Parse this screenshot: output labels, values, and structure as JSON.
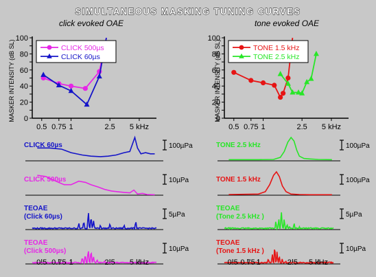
{
  "figure": {
    "title": "SIMULTANEOUS MASKING TUNING CURVES",
    "x_tick_labels": [
      "0.5",
      "0.75",
      "1",
      "2.5",
      "5 kHz"
    ],
    "colors": {
      "background": "#c8c8c8",
      "blue": "#1414c8",
      "magenta": "#e626e6",
      "red": "#e61414",
      "green": "#28e628"
    }
  },
  "chart_data": [
    {
      "id": "click-tuning",
      "type": "line",
      "subtitle": "click evoked  OAE",
      "ylabel": "MASKER INTENSITY (dB SL)",
      "x_scale": "log",
      "xlim": [
        0.4,
        7.5
      ],
      "ylim": [
        0,
        100
      ],
      "y_ticks": [
        0,
        10,
        20,
        30,
        40,
        50,
        60,
        70,
        80,
        90,
        100
      ],
      "x_ticks": [
        0.5,
        0.75,
        1,
        2.5,
        5
      ],
      "legend": "top-left",
      "series": [
        {
          "name": "CLICK 500µs",
          "color": "#e626e6",
          "marker": "circle",
          "points": [
            [
              0.52,
              50
            ],
            [
              0.75,
              43
            ],
            [
              1.0,
              40
            ],
            [
              1.4,
              37
            ],
            [
              1.95,
              58
            ],
            [
              2.3,
              100
            ]
          ]
        },
        {
          "name": "CLICK 60µs",
          "color": "#1414c8",
          "marker": "triangle",
          "points": [
            [
              0.52,
              54
            ],
            [
              0.75,
              41
            ],
            [
              1.0,
              34
            ],
            [
              1.45,
              17
            ],
            [
              1.95,
              52
            ],
            [
              2.3,
              100
            ]
          ]
        }
      ]
    },
    {
      "id": "tone-tuning",
      "type": "line",
      "subtitle": "tone evoked  OAE",
      "ylabel": "MASKER INTENSITY (dB SL)",
      "x_scale": "log",
      "xlim": [
        0.4,
        7.5
      ],
      "ylim": [
        0,
        100
      ],
      "y_ticks": [
        0,
        10,
        20,
        30,
        40,
        50,
        60,
        70,
        80,
        90,
        100
      ],
      "x_ticks": [
        0.5,
        0.75,
        1,
        2.5,
        5
      ],
      "legend": "top-left",
      "series": [
        {
          "name": "TONE 1.5 kHz",
          "color": "#e61414",
          "marker": "circle",
          "points": [
            [
              0.5,
              57
            ],
            [
              0.75,
              47
            ],
            [
              1.0,
              44
            ],
            [
              1.3,
              41
            ],
            [
              1.5,
              26
            ],
            [
              1.6,
              31
            ],
            [
              1.8,
              50
            ],
            [
              2.0,
              100
            ]
          ]
        },
        {
          "name": "TONE 2.5 kHz",
          "color": "#28e628",
          "marker": "triangle",
          "points": [
            [
              1.5,
              55
            ],
            [
              1.8,
              43
            ],
            [
              2.0,
              32
            ],
            [
              2.3,
              32
            ],
            [
              2.5,
              31
            ],
            [
              2.8,
              45
            ],
            [
              3.1,
              49
            ],
            [
              3.5,
              80
            ]
          ]
        }
      ]
    },
    {
      "id": "click-waveforms",
      "type": "line",
      "x_scale": "log",
      "xlim": [
        0.4,
        7.5
      ],
      "x_ticks": [
        0.5,
        0.75,
        1,
        2.5,
        5
      ],
      "series": [
        {
          "name": "CLICK 60µs",
          "color": "#1414c8",
          "scale_label": "100µPa",
          "kind": "spectrum",
          "x": [
            0.45,
            0.6,
            0.8,
            1.0,
            1.3,
            1.6,
            2.0,
            2.4,
            2.9,
            3.5,
            4.0,
            4.5,
            4.8,
            5.2,
            5.8,
            6.5,
            7.2
          ],
          "y": [
            0.55,
            0.55,
            0.5,
            0.35,
            0.25,
            0.2,
            0.18,
            0.2,
            0.25,
            0.35,
            0.4,
            1.0,
            0.55,
            0.3,
            0.35,
            0.3,
            0.3
          ]
        },
        {
          "name": "CLICK 500µs",
          "color": "#e626e6",
          "scale_label": "10µPa",
          "kind": "spectrum",
          "x": [
            0.45,
            0.55,
            0.7,
            0.85,
            1.0,
            1.2,
            1.4,
            1.6,
            1.9,
            2.2,
            2.6,
            3.0,
            3.5,
            4.0,
            4.4,
            4.8,
            5.4,
            6.0,
            7.2
          ],
          "y": [
            0.85,
            0.8,
            0.6,
            0.45,
            0.45,
            0.6,
            0.55,
            0.45,
            0.35,
            0.25,
            0.18,
            0.15,
            0.12,
            0.1,
            0.22,
            0.05,
            0.08,
            0.03,
            0.02
          ]
        },
        {
          "name": "TEOAE\n(Click 60µs)",
          "color": "#1414c8",
          "scale_label": "5µPa",
          "kind": "noisy",
          "peaks": [
            [
              1.35,
              0.6
            ],
            [
              1.5,
              1.0
            ],
            [
              1.6,
              0.8
            ],
            [
              1.7,
              0.5
            ],
            [
              1.2,
              0.35
            ],
            [
              2.0,
              0.3
            ],
            [
              2.5,
              0.3
            ],
            [
              3.5,
              0.25
            ],
            [
              4.6,
              0.45
            ]
          ]
        },
        {
          "name": "TEOAE\n(Click 500µs)",
          "color": "#e626e6",
          "scale_label": "10µPa",
          "kind": "noisy",
          "peaks": [
            [
              1.3,
              0.4
            ],
            [
              1.4,
              0.55
            ],
            [
              1.5,
              1.0
            ],
            [
              1.6,
              0.75
            ],
            [
              1.7,
              0.45
            ],
            [
              1.85,
              0.3
            ],
            [
              2.2,
              0.15
            ]
          ]
        }
      ]
    },
    {
      "id": "tone-waveforms",
      "type": "line",
      "x_scale": "log",
      "xlim": [
        0.4,
        7.5
      ],
      "x_ticks": [
        0.5,
        0.75,
        1,
        2.5,
        5
      ],
      "series": [
        {
          "name": "TONE 2.5 kHz",
          "color": "#28e628",
          "scale_label": "100µPa",
          "kind": "spectrum",
          "x": [
            0.45,
            1.0,
            1.5,
            1.8,
            2.0,
            2.2,
            2.4,
            2.6,
            2.8,
            3.0,
            3.4,
            4.0,
            5.0,
            7.2
          ],
          "y": [
            0.05,
            0.05,
            0.06,
            0.15,
            0.4,
            0.8,
            1.0,
            0.85,
            0.45,
            0.2,
            0.1,
            0.08,
            0.06,
            0.05
          ]
        },
        {
          "name": "TONE 1.5 kHz",
          "color": "#e61414",
          "scale_label": "100µPa",
          "kind": "spectrum",
          "x": [
            0.45,
            1.0,
            1.2,
            1.35,
            1.5,
            1.62,
            1.75,
            1.9,
            2.1,
            2.4,
            3.0,
            4.0,
            7.2
          ],
          "y": [
            0.03,
            0.05,
            0.15,
            0.45,
            0.85,
            1.0,
            0.8,
            0.4,
            0.15,
            0.05,
            0.03,
            0.02,
            0.02
          ]
        },
        {
          "name": "TEOAE\n(Tone 2.5 kHz )",
          "color": "#28e628",
          "scale_label": "5µPa",
          "kind": "noisy",
          "peaks": [
            [
              1.6,
              0.45
            ],
            [
              1.72,
              0.6
            ],
            [
              1.85,
              1.0
            ],
            [
              2.0,
              0.55
            ],
            [
              2.15,
              0.35
            ],
            [
              2.3,
              0.25
            ],
            [
              2.6,
              0.35
            ],
            [
              3.0,
              0.15
            ]
          ]
        },
        {
          "name": "TEOAE\n(Tone 1.5 kHz )",
          "color": "#e61414",
          "scale_label": "10µPa",
          "kind": "noisy",
          "peaks": [
            [
              1.3,
              0.3
            ],
            [
              1.45,
              0.55
            ],
            [
              1.55,
              1.0
            ],
            [
              1.65,
              0.75
            ],
            [
              1.75,
              0.55
            ],
            [
              1.9,
              0.3
            ],
            [
              2.1,
              0.12
            ]
          ]
        }
      ]
    }
  ]
}
